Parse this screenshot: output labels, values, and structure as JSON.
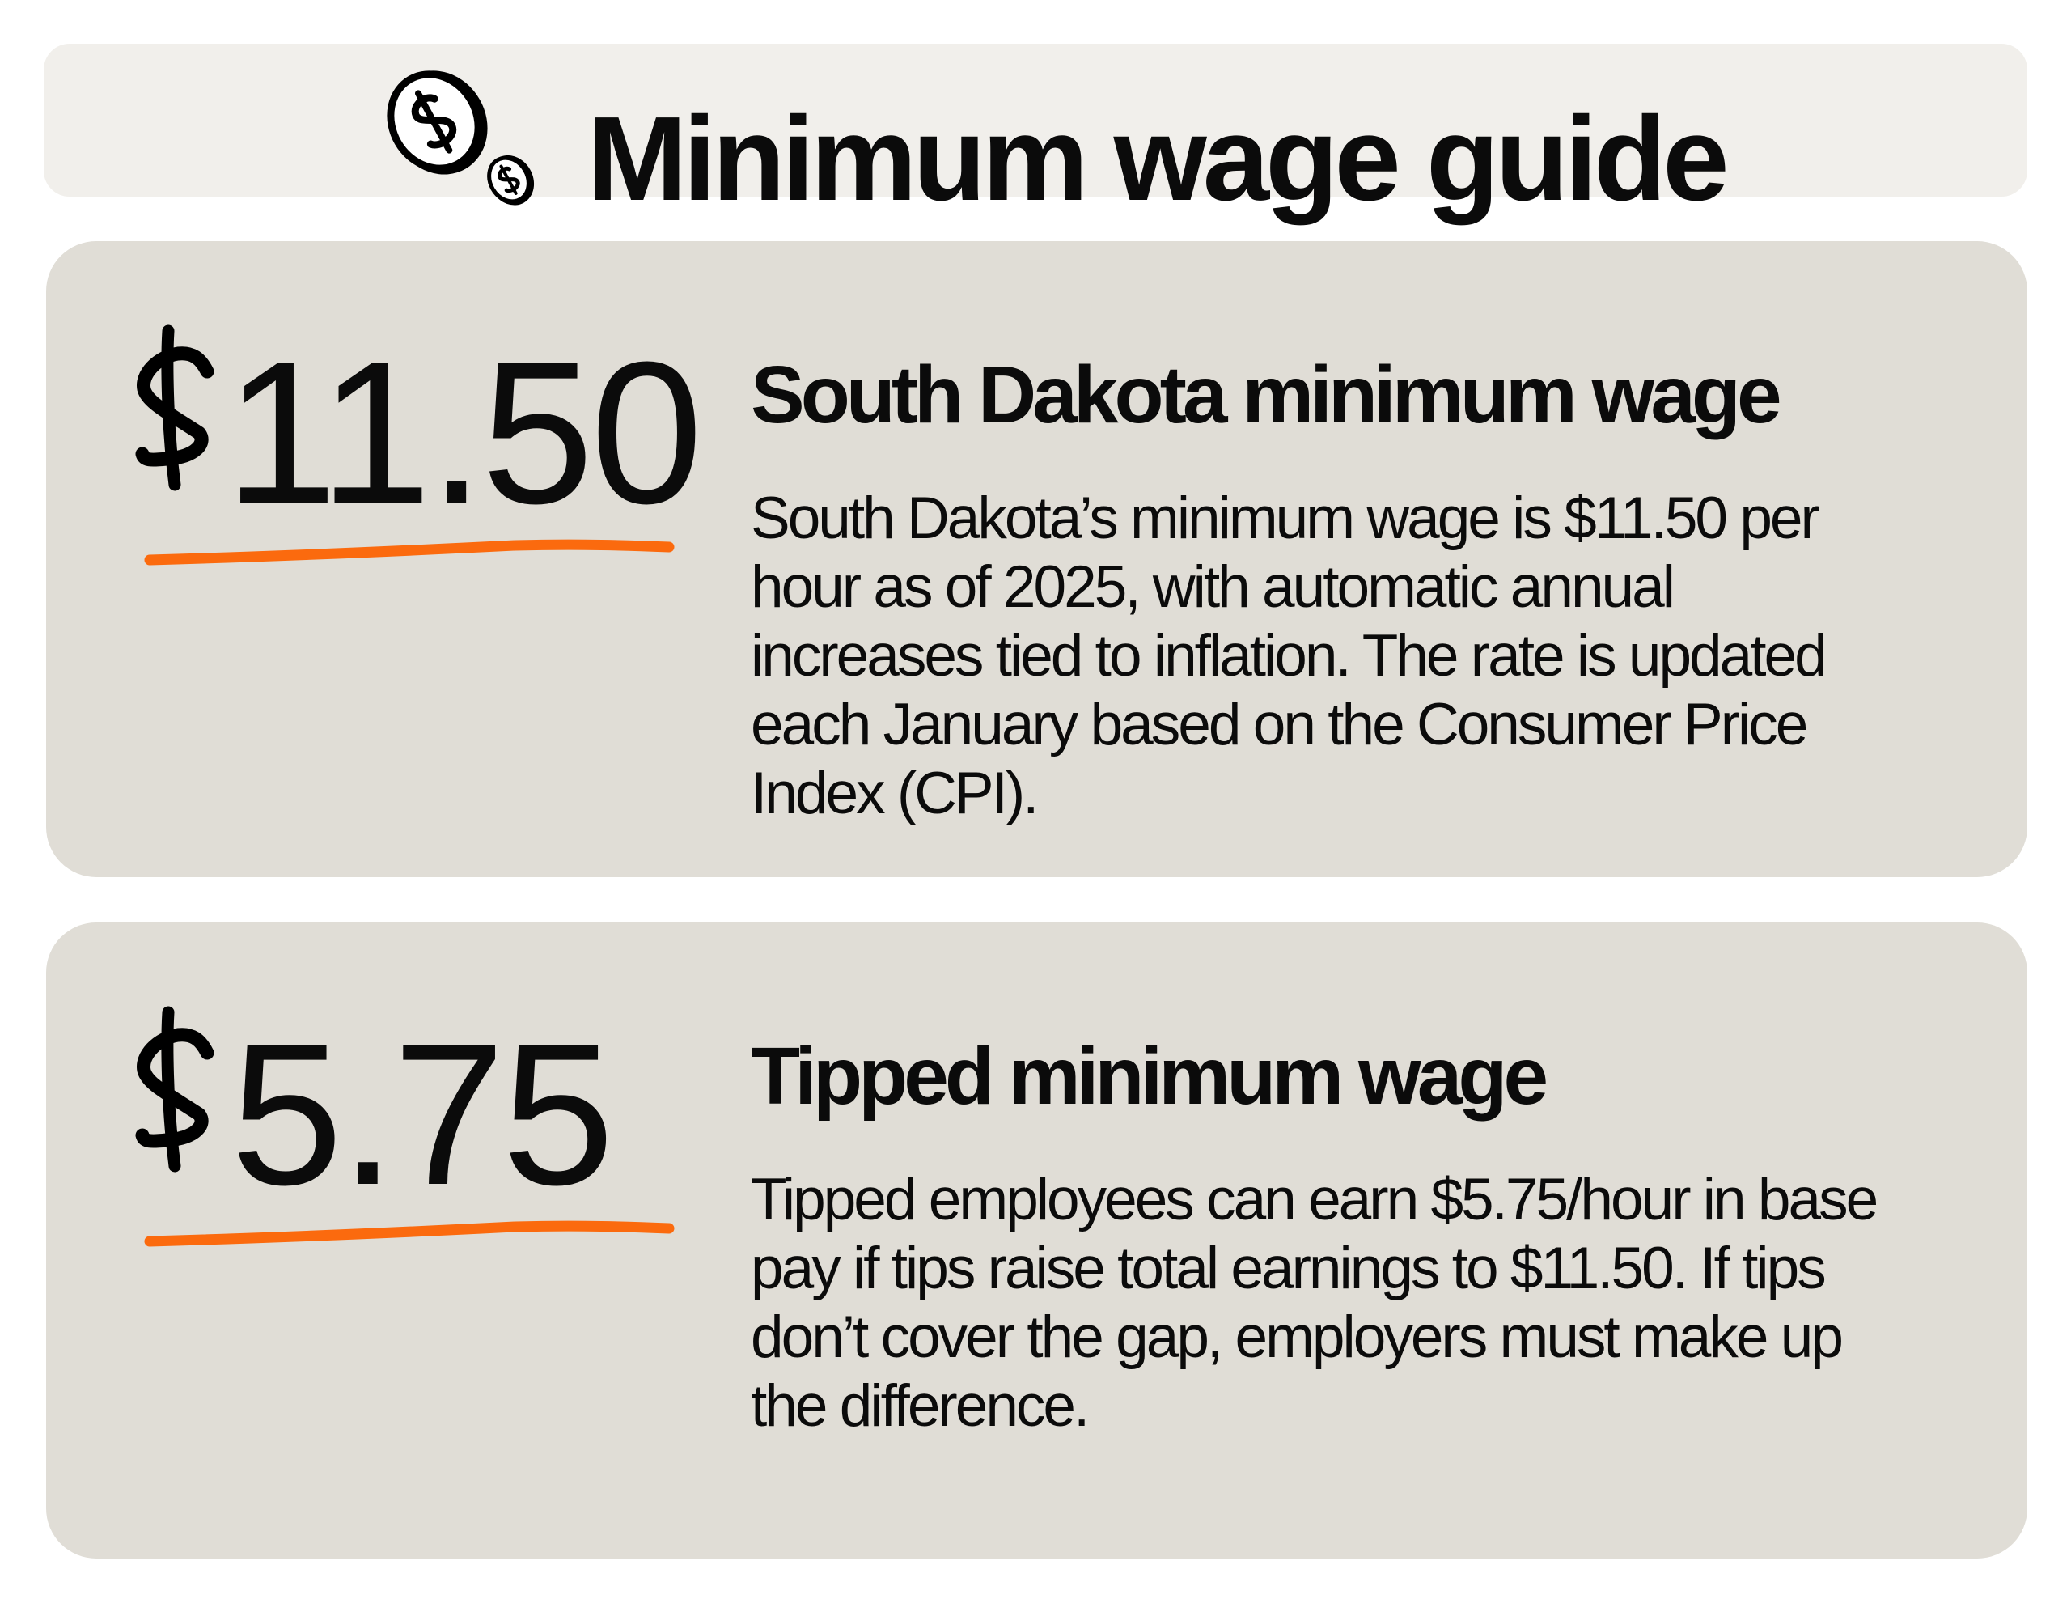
{
  "header": {
    "title": "Minimum wage guide",
    "icon": "dollar-coins-icon"
  },
  "cards": [
    {
      "amount": "11.50",
      "currency_symbol": "$",
      "heading": "South Dakota minimum wage",
      "body_lines": [
        "South Dakota’s minimum wage is $11.50 per",
        "hour as of 2025, with automatic annual",
        "increases tied to inflation. The rate is updated",
        "each January based on the Consumer Price",
        "Index (CPI)."
      ]
    },
    {
      "amount": "5.75",
      "currency_symbol": "$",
      "heading": "Tipped minimum wage",
      "body_lines": [
        "Tipped employees can earn $5.75/hour in base",
        "pay if tips raise total earnings to $11.50. If tips",
        "don’t cover the gap, employers must make up",
        "the difference."
      ]
    }
  ],
  "colors": {
    "header_bg": "#f1efeb",
    "card_bg": "#e0ddd6",
    "underline": "#fb6a0e",
    "text": "#0b0b0b"
  }
}
